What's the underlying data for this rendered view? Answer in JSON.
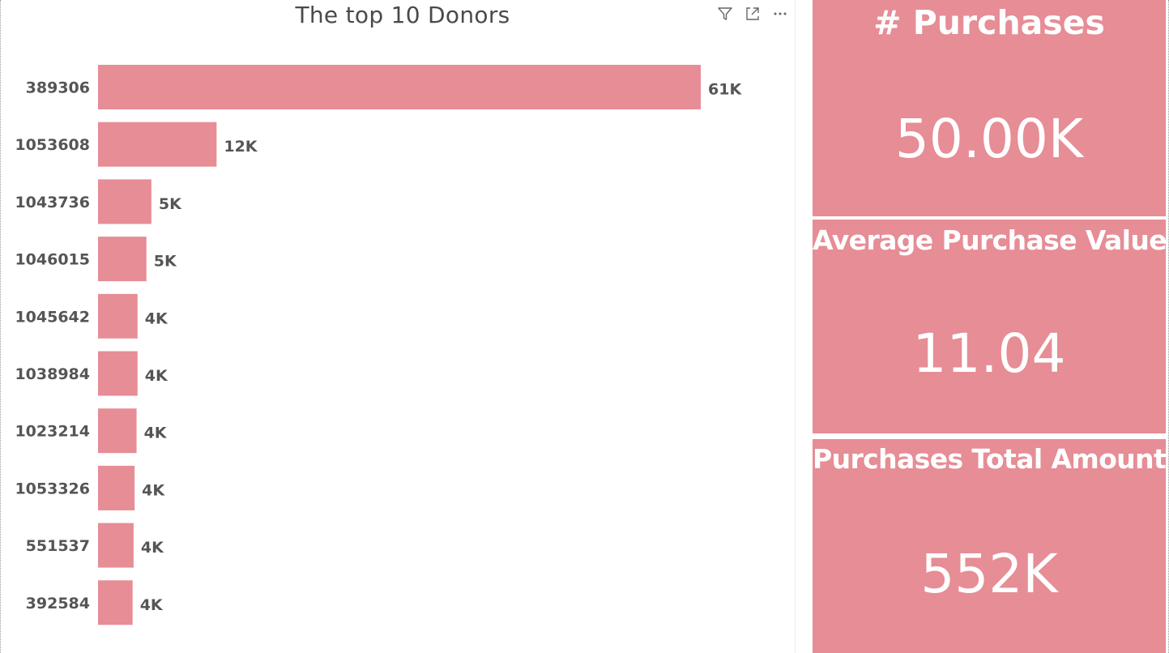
{
  "chart_data": {
    "type": "bar",
    "orientation": "horizontal",
    "title": "The top 10 Donors",
    "categories": [
      "389306",
      "1053608",
      "1043736",
      "1046015",
      "1045642",
      "1038984",
      "1023214",
      "1053326",
      "551537",
      "392584"
    ],
    "values": [
      61000,
      12000,
      5400,
      4900,
      4000,
      4000,
      3900,
      3700,
      3600,
      3500
    ],
    "data_labels": [
      "61K",
      "12K",
      "5K",
      "5K",
      "4K",
      "4K",
      "4K",
      "4K",
      "4K",
      "4K"
    ],
    "bar_color": "#e68d95",
    "grid": false,
    "legend": "none"
  },
  "visual_header": {
    "icons": [
      "filter-icon",
      "focus-mode-icon",
      "more-options-icon"
    ]
  },
  "cards": [
    {
      "title": "# Purchases",
      "value": "50.00K"
    },
    {
      "title": "Average Purchase Value",
      "value": "11.04"
    },
    {
      "title": "Purchases Total Amount",
      "value": "552K"
    }
  ],
  "colors": {
    "card_background": "#e68d95",
    "text_dark": "#555555",
    "title_text": "#4a4a4a"
  }
}
